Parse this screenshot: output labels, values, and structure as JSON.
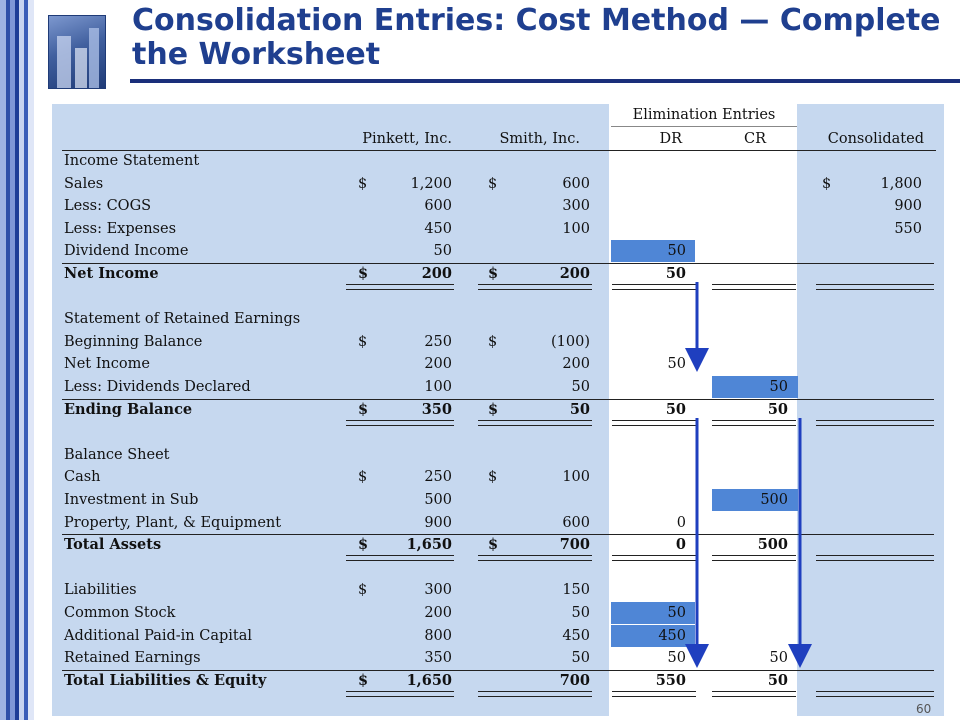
{
  "title": "Consolidation Entries: Cost Method — Complete the Worksheet",
  "slide_number": "60",
  "headers": {
    "elimination": "Elimination Entries",
    "pinkett": "Pinkett, Inc.",
    "smith": "Smith, Inc.",
    "dr": "DR",
    "cr": "CR",
    "consolidated": "Consolidated"
  },
  "rows": [
    {
      "label": "Income Statement",
      "bold": false,
      "section": true
    },
    {
      "label": "Sales",
      "p_sym": "$",
      "p": "1,200",
      "s_sym": "$",
      "s": "600",
      "c_sym": "$",
      "c": "1,800"
    },
    {
      "label": "Less: COGS",
      "p": "600",
      "s": "300",
      "c": "900"
    },
    {
      "label": "Less: Expenses",
      "p": "450",
      "s": "100",
      "c": "550"
    },
    {
      "label": "Dividend Income",
      "p": "50",
      "dr": "50",
      "dr_hl": true
    },
    {
      "label": "Net Income",
      "bold": true,
      "p_sym": "$",
      "p": "200",
      "s_sym": "$",
      "s": "200",
      "dr": "50",
      "total": true
    },
    {
      "label": ""
    },
    {
      "label": "Statement of Retained Earnings",
      "section": true
    },
    {
      "label": "Beginning Balance",
      "p_sym": "$",
      "p": "250",
      "s_sym": "$",
      "s": "(100)"
    },
    {
      "label": "Net Income",
      "p": "200",
      "s": "200",
      "dr": "50"
    },
    {
      "label": "Less: Dividends Declared",
      "p": "100",
      "s": "50",
      "cr": "50",
      "cr_hl": true
    },
    {
      "label": "Ending Balance",
      "bold": true,
      "p_sym": "$",
      "p": "350",
      "s_sym": "$",
      "s": "50",
      "dr": "50",
      "cr": "50",
      "total": true
    },
    {
      "label": ""
    },
    {
      "label": "Balance Sheet",
      "section": true
    },
    {
      "label": "Cash",
      "p_sym": "$",
      "p": "250",
      "s_sym": "$",
      "s": "100"
    },
    {
      "label": "Investment in Sub",
      "p": "500",
      "cr": "500",
      "cr_hl": true
    },
    {
      "label": "Property, Plant, & Equipment",
      "p": "900",
      "s": "600",
      "dr": "0"
    },
    {
      "label": "Total Assets",
      "bold": true,
      "p_sym": "$",
      "p": "1,650",
      "s_sym": "$",
      "s": "700",
      "dr": "0",
      "cr": "500",
      "total": true
    },
    {
      "label": ""
    },
    {
      "label": "Liabilities",
      "p_sym": "$",
      "p": "300",
      "s": "150"
    },
    {
      "label": "Common Stock",
      "p": "200",
      "s": "50",
      "dr": "50",
      "dr_hl": true
    },
    {
      "label": "Additional Paid-in Capital",
      "p": "800",
      "s": "450",
      "dr": "450",
      "dr_hl": true
    },
    {
      "label": "Retained Earnings",
      "p": "350",
      "s": "50",
      "dr": "50",
      "cr": "50"
    },
    {
      "label": "Total Liabilities & Equity",
      "bold": true,
      "p_sym": "$",
      "p": "1,650",
      "s": "700",
      "dr": "550",
      "cr": "50",
      "total": true
    }
  ],
  "colors": {
    "sheet_bg": "#c6d8ef",
    "highlight": "#4f86d6",
    "arrow": "#1f3fbf",
    "title": "#1f3f8f"
  }
}
